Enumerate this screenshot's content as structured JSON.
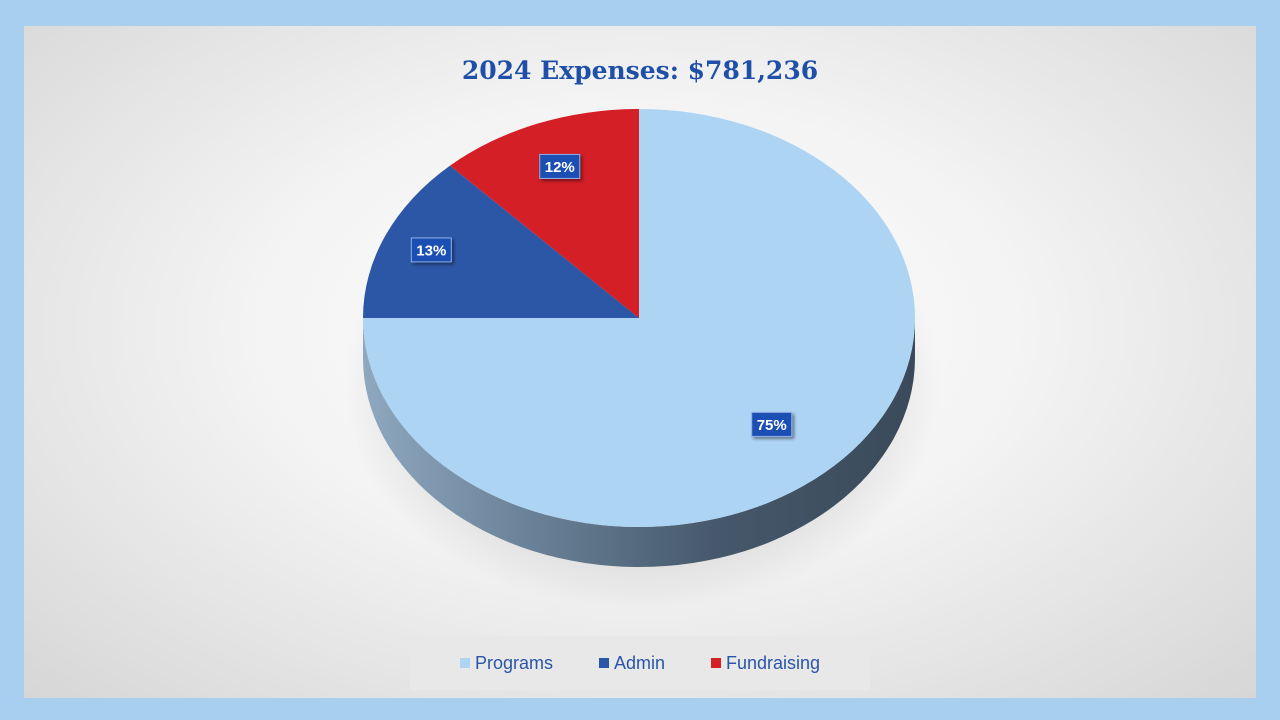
{
  "chart_data": {
    "type": "pie",
    "title": "2024 Expenses: $781,236",
    "categories": [
      "Programs",
      "Admin",
      "Fundraising"
    ],
    "values": [
      75,
      13,
      12
    ],
    "data_labels": [
      "75%",
      "13%",
      "12%"
    ],
    "colors": [
      "#aed4f4",
      "#2c57a6",
      "#d41f26"
    ],
    "legend_position": "bottom",
    "style": "3d"
  }
}
